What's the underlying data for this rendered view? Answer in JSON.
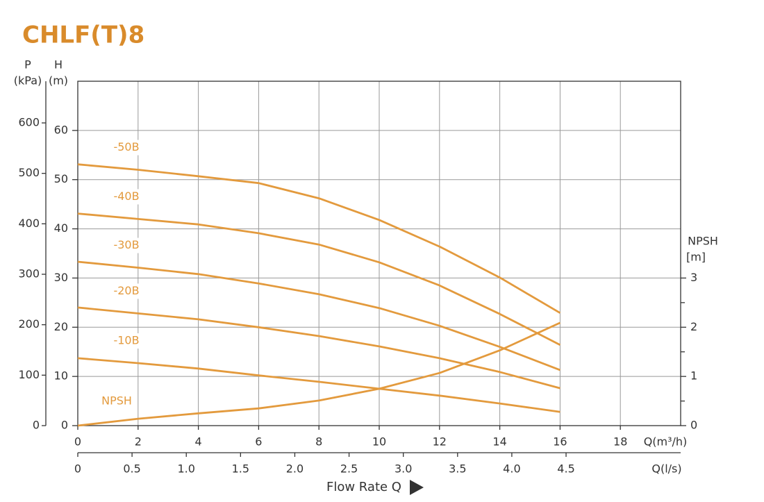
{
  "chart_data": {
    "type": "line",
    "title": "CHLF(T)8",
    "x_label": "Q(m³/h)",
    "x2_label": "Q(l/s)",
    "x_title": "Flow Rate Q",
    "y_label": "H",
    "y_unit": "(m)",
    "p_label": "P",
    "p_unit": "(kPa)",
    "y2_label": "NPSH",
    "y2_unit": "[m]",
    "x": [
      0,
      2,
      4,
      6,
      8,
      10,
      12,
      14,
      16
    ],
    "xlim": [
      0,
      20
    ],
    "xticks": [
      0,
      2,
      4,
      6,
      8,
      10,
      12,
      14,
      16,
      18
    ],
    "x2lim": [
      0,
      5.556
    ],
    "x2ticks": [
      0,
      0.5,
      {
        "value": 1,
        "label": "1.0"
      },
      1.5,
      {
        "value": 2,
        "label": "2.0"
      },
      2.5,
      {
        "value": 3,
        "label": "3.0"
      },
      3.5,
      {
        "value": 4,
        "label": "4.0"
      },
      4.5
    ],
    "ylim": [
      0,
      70
    ],
    "yticks": [
      0,
      10,
      20,
      30,
      40,
      50,
      60
    ],
    "plim": [
      0,
      682.6
    ],
    "pticks": [
      0,
      100,
      200,
      300,
      400,
      500,
      600
    ],
    "y2lim": [
      0,
      7
    ],
    "y2ticks": [
      0,
      1,
      2,
      3
    ],
    "y2minor_ticks": [
      0.5,
      1.5,
      2.5
    ],
    "grid": true,
    "series": [
      {
        "name": "-50B",
        "color": "#e39a3d",
        "values": [
          53.1,
          52.0,
          50.7,
          49.3,
          46.2,
          41.8,
          36.4,
          30.1,
          22.9
        ]
      },
      {
        "name": "-40B",
        "color": "#e39a3d",
        "values": [
          43.1,
          42.0,
          40.9,
          39.1,
          36.8,
          33.2,
          28.5,
          22.7,
          16.4
        ]
      },
      {
        "name": "-30B",
        "color": "#e39a3d",
        "values": [
          33.3,
          32.1,
          30.8,
          28.9,
          26.7,
          23.9,
          20.3,
          16.0,
          11.3
        ]
      },
      {
        "name": "-20B",
        "color": "#e39a3d",
        "values": [
          24.0,
          22.8,
          21.6,
          20.0,
          18.2,
          16.1,
          13.7,
          10.9,
          7.6
        ]
      },
      {
        "name": "-10B",
        "color": "#e39a3d",
        "values": [
          13.7,
          12.7,
          11.6,
          10.2,
          8.9,
          7.5,
          6.1,
          4.5,
          2.8
        ]
      },
      {
        "name": "NPSH",
        "color": "#e39a3d",
        "axis": "y2",
        "values": [
          0,
          0.14,
          0.25,
          0.35,
          0.51,
          0.75,
          1.07,
          1.53,
          2.09
        ]
      }
    ]
  }
}
